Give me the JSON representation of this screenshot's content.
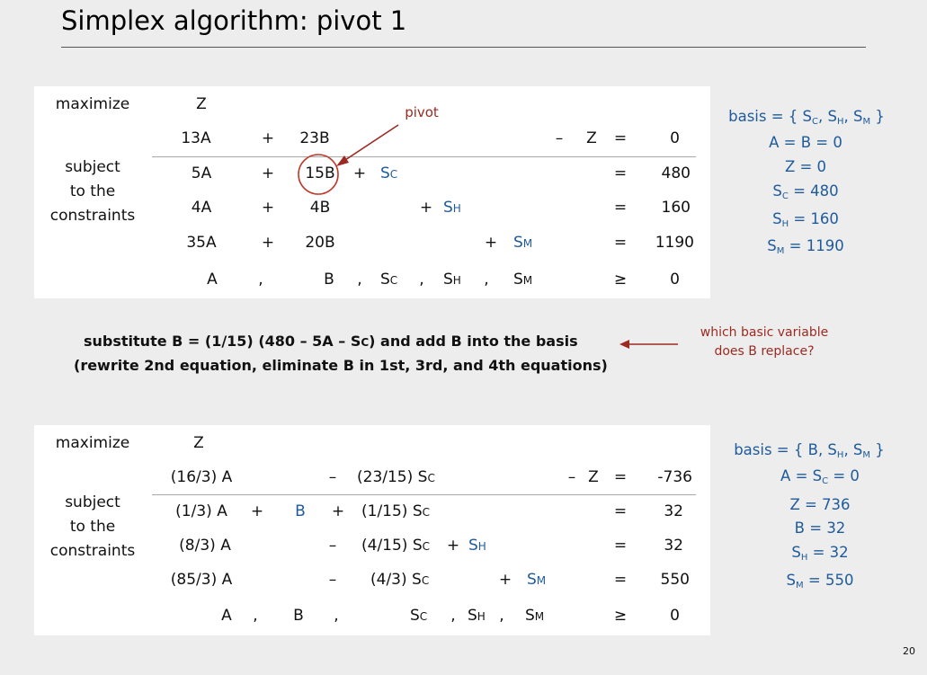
{
  "title": "Simplex algorithm: pivot 1",
  "page_number": "20",
  "colors": {
    "variable_blue": "#1f5b9b",
    "annotation_red": "#9c2a22",
    "panel": "#ffffff",
    "background": "#ededed"
  },
  "labels": {
    "maximize": "maximize",
    "subject": "subject",
    "to_the": "to the",
    "constraints": "constraints"
  },
  "tableau1": {
    "z": "Z",
    "obj": {
      "a": "13A",
      "plus": "+",
      "b": "23B",
      "minus": "–",
      "z": "Z",
      "eq": "=",
      "rhs": "0"
    },
    "row1": {
      "a": "5A",
      "p1": "+",
      "b": "15B",
      "p2": "+",
      "s": "S",
      "sub": "C",
      "eq": "=",
      "rhs": "480"
    },
    "row2": {
      "a": "4A",
      "p1": "+",
      "b": "4B",
      "p2": "+",
      "s": "S",
      "sub": "H",
      "eq": "=",
      "rhs": "160"
    },
    "row3": {
      "a": "35A",
      "p1": "+",
      "b": "20B",
      "p2": "+",
      "s": "S",
      "sub": "M",
      "eq": "=",
      "rhs": "1190"
    },
    "nonneg": {
      "a": "A",
      "c1": ",",
      "b": "B",
      "c2": ",",
      "sc": "S",
      "sc_sub": "C",
      "c3": ",",
      "sh": "S",
      "sh_sub": "H",
      "c4": ",",
      "sm": "S",
      "sm_sub": "M",
      "ge": "≥",
      "rhs": "0"
    },
    "pivot_label": "pivot"
  },
  "basis1": {
    "l1_pre": "basis = { S",
    "l1_s1": "C",
    "l1_m1": ", S",
    "l1_s2": "H",
    "l1_m2": ", S",
    "l1_s3": "M",
    "l1_post": " }",
    "l2": "A = B = 0",
    "l3": "Z = 0",
    "l4_pre": "S",
    "l4_sub": "C",
    "l4_post": " = 480",
    "l5_pre": "S",
    "l5_sub": "H",
    "l5_post": " = 160",
    "l6_pre": "S",
    "l6_sub": "M",
    "l6_post": " = 1190"
  },
  "substitution": {
    "line1_pre": "substitute  B = (1/15) (480 – 5A – S",
    "line1_sub": "C",
    "line1_post": ") and add B into the basis",
    "line2": "(rewrite 2nd equation, eliminate B in 1st, 3rd, and 4th equations)",
    "question_line1": "which basic variable",
    "question_line2": "does B replace?"
  },
  "tableau2": {
    "z": "Z",
    "obj": {
      "a": "(16/3) A",
      "minus1": "–",
      "s": "(23/15) S",
      "sub": "C",
      "minus2": "–",
      "z": "Z",
      "eq": "=",
      "rhs": "-736"
    },
    "row1": {
      "a": "(1/3) A",
      "p1": "+",
      "b": "B",
      "p2": "+",
      "s": "(1/15) S",
      "sub": "C",
      "eq": "=",
      "rhs": "32"
    },
    "row2": {
      "a": "(8/3) A",
      "m1": "–",
      "s": "(4/15) S",
      "sub": "C",
      "p2": "+",
      "sh": "S",
      "sh_sub": "H",
      "eq": "=",
      "rhs": "32"
    },
    "row3": {
      "a": "(85/3) A",
      "m1": "–",
      "s": "(4/3) S",
      "sub": "C",
      "p2": "+",
      "sm": "S",
      "sm_sub": "M",
      "eq": "=",
      "rhs": "550"
    },
    "nonneg": {
      "a": "A",
      "c1": ",",
      "b": "B",
      "c2": ",",
      "sc": "S",
      "sc_sub": "C",
      "c3": ",",
      "sh": "S",
      "sh_sub": "H",
      "c4": ",",
      "sm": "S",
      "sm_sub": "M",
      "ge": "≥",
      "rhs": "0"
    }
  },
  "basis2": {
    "l1_pre": "basis = { B, S",
    "l1_s1": "H",
    "l1_m1": ", S",
    "l1_s2": "M",
    "l1_post": " }",
    "l2_pre": "A = S",
    "l2_sub": "C",
    "l2_post": " = 0",
    "l3": "Z = 736",
    "l4": "B = 32",
    "l5_pre": "S",
    "l5_sub": "H",
    "l5_post": " = 32",
    "l6_pre": "S",
    "l6_sub": "M",
    "l6_post": " = 550"
  }
}
